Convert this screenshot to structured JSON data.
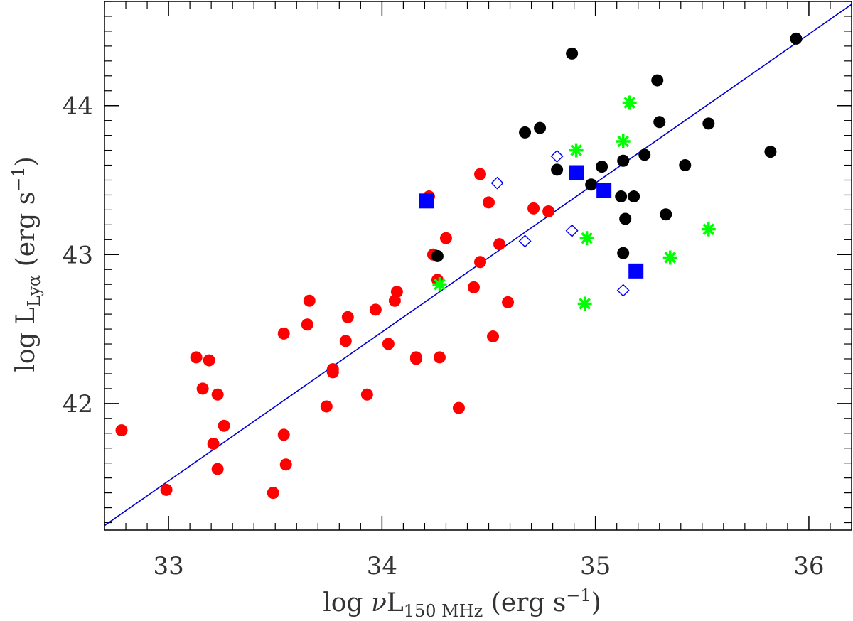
{
  "chart_data": {
    "type": "scatter",
    "title": "",
    "xlabel": {
      "prefix": "log ",
      "nu": "ν",
      "main": "L",
      "sub": "150 MHz",
      "suffix": " (erg s",
      "sup": "−1",
      "close": ")"
    },
    "ylabel": {
      "prefix": "log ",
      "main": "L",
      "sub": "Lyα",
      "suffix": " (erg s",
      "sup": "−1",
      "close": ")"
    },
    "xlim": [
      32.7,
      36.2
    ],
    "ylim": [
      41.15,
      44.7
    ],
    "x_ticks": [
      33,
      34,
      35,
      36
    ],
    "x_tick_labels": [
      "33",
      "34",
      "35",
      "36"
    ],
    "y_ticks": [
      42,
      43,
      44
    ],
    "y_tick_labels": [
      "42",
      "43",
      "44"
    ],
    "grid": false,
    "legend": "none",
    "fit_line": {
      "x": [
        32.7,
        36.2
      ],
      "y": [
        41.18,
        44.68
      ],
      "color": "#0000cc"
    },
    "series": [
      {
        "marker": "filled-circle",
        "color": "#ff0000",
        "points": [
          [
            32.78,
            41.82
          ],
          [
            32.99,
            41.42
          ],
          [
            33.13,
            42.31
          ],
          [
            33.16,
            42.1
          ],
          [
            33.19,
            42.29
          ],
          [
            33.21,
            41.73
          ],
          [
            33.23,
            42.06
          ],
          [
            33.23,
            41.56
          ],
          [
            33.26,
            41.85
          ],
          [
            33.49,
            41.4
          ],
          [
            33.54,
            42.47
          ],
          [
            33.54,
            41.79
          ],
          [
            33.55,
            41.59
          ],
          [
            33.65,
            42.53
          ],
          [
            33.66,
            42.69
          ],
          [
            33.74,
            41.98
          ],
          [
            33.77,
            42.23
          ],
          [
            33.77,
            42.21
          ],
          [
            33.83,
            42.42
          ],
          [
            33.84,
            42.58
          ],
          [
            33.93,
            42.06
          ],
          [
            33.97,
            42.63
          ],
          [
            34.03,
            42.4
          ],
          [
            34.06,
            42.69
          ],
          [
            34.07,
            42.75
          ],
          [
            34.16,
            42.3
          ],
          [
            34.16,
            42.31
          ],
          [
            34.22,
            43.39
          ],
          [
            34.24,
            43.0
          ],
          [
            34.26,
            42.83
          ],
          [
            34.27,
            42.31
          ],
          [
            34.3,
            43.11
          ],
          [
            34.36,
            41.97
          ],
          [
            34.43,
            42.78
          ],
          [
            34.46,
            42.95
          ],
          [
            34.46,
            43.54
          ],
          [
            34.5,
            43.35
          ],
          [
            34.52,
            42.45
          ],
          [
            34.55,
            43.07
          ],
          [
            34.59,
            42.68
          ],
          [
            34.71,
            43.31
          ],
          [
            34.78,
            43.29
          ]
        ]
      },
      {
        "marker": "filled-circle",
        "color": "#000000",
        "points": [
          [
            34.26,
            42.99
          ],
          [
            34.67,
            43.82
          ],
          [
            34.74,
            43.85
          ],
          [
            34.82,
            43.57
          ],
          [
            34.89,
            44.35
          ],
          [
            34.98,
            43.47
          ],
          [
            35.03,
            43.59
          ],
          [
            35.12,
            43.39
          ],
          [
            35.13,
            43.63
          ],
          [
            35.13,
            43.01
          ],
          [
            35.14,
            43.24
          ],
          [
            35.18,
            43.39
          ],
          [
            35.23,
            43.67
          ],
          [
            35.29,
            44.17
          ],
          [
            35.3,
            43.89
          ],
          [
            35.33,
            43.27
          ],
          [
            35.42,
            43.6
          ],
          [
            35.53,
            43.88
          ],
          [
            35.82,
            43.69
          ],
          [
            35.94,
            44.45
          ]
        ]
      },
      {
        "marker": "filled-square",
        "color": "#0000ff",
        "points": [
          [
            34.21,
            43.36
          ],
          [
            34.91,
            43.55
          ],
          [
            35.04,
            43.43
          ],
          [
            35.19,
            42.89
          ]
        ]
      },
      {
        "marker": "open-diamond",
        "color": "#0000ff",
        "points": [
          [
            34.54,
            43.48
          ],
          [
            34.67,
            43.09
          ],
          [
            34.82,
            43.66
          ],
          [
            34.89,
            43.16
          ],
          [
            35.13,
            42.76
          ]
        ]
      },
      {
        "marker": "asterisk",
        "color": "#00ff00",
        "points": [
          [
            34.27,
            42.8
          ],
          [
            34.91,
            43.7
          ],
          [
            34.95,
            42.67
          ],
          [
            34.96,
            43.11
          ],
          [
            35.13,
            43.76
          ],
          [
            35.16,
            44.02
          ],
          [
            35.35,
            42.98
          ],
          [
            35.53,
            43.17
          ]
        ]
      }
    ]
  }
}
